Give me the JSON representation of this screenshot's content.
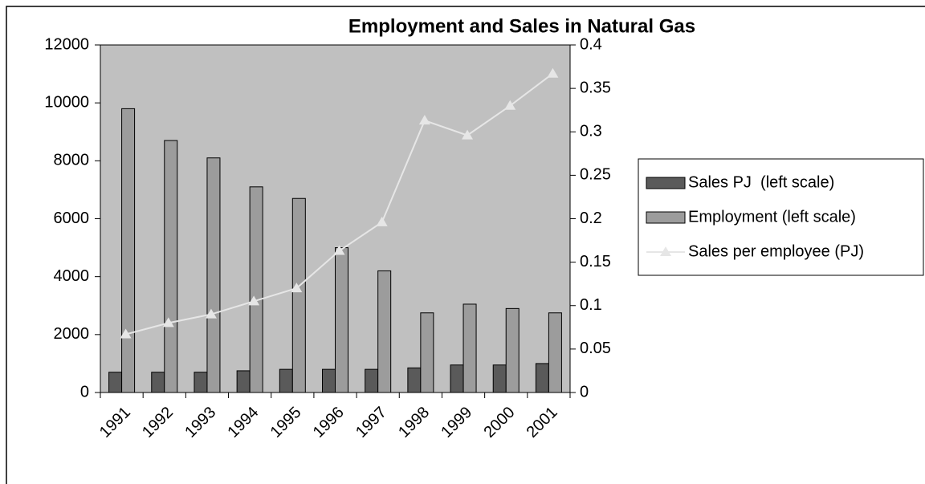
{
  "chart_data": {
    "type": "bar",
    "title": "Employment and Sales in Natural Gas",
    "categories": [
      "1991",
      "1992",
      "1993",
      "1994",
      "1995",
      "1996",
      "1997",
      "1998",
      "1999",
      "2000",
      "2001"
    ],
    "series": [
      {
        "name": "Sales PJ  (left scale)",
        "color": "#5a5a5a",
        "values": [
          700,
          700,
          700,
          750,
          800,
          800,
          800,
          850,
          950,
          950,
          1000
        ]
      },
      {
        "name": "Employment (left scale)",
        "color": "#9c9c9c",
        "values": [
          9800,
          8700,
          8100,
          7100,
          6700,
          5000,
          4200,
          2750,
          3050,
          2900,
          2750
        ]
      },
      {
        "name": "Sales per employee (PJ)",
        "color": "#e6e6e6",
        "type": "line",
        "axis": "y2",
        "values": [
          0.067,
          0.08,
          0.09,
          0.105,
          0.12,
          0.163,
          0.196,
          0.313,
          0.296,
          0.33,
          0.367
        ]
      }
    ],
    "ylim": [
      0,
      12000
    ],
    "yticks": [
      0,
      2000,
      4000,
      6000,
      8000,
      10000,
      12000
    ],
    "y2lim": [
      0,
      0.4
    ],
    "y2ticks": [
      0,
      0.05,
      0.1,
      0.15,
      0.2,
      0.25,
      0.3,
      0.35,
      0.4
    ],
    "plot_background": "#c0c0c0",
    "legend": "right"
  }
}
